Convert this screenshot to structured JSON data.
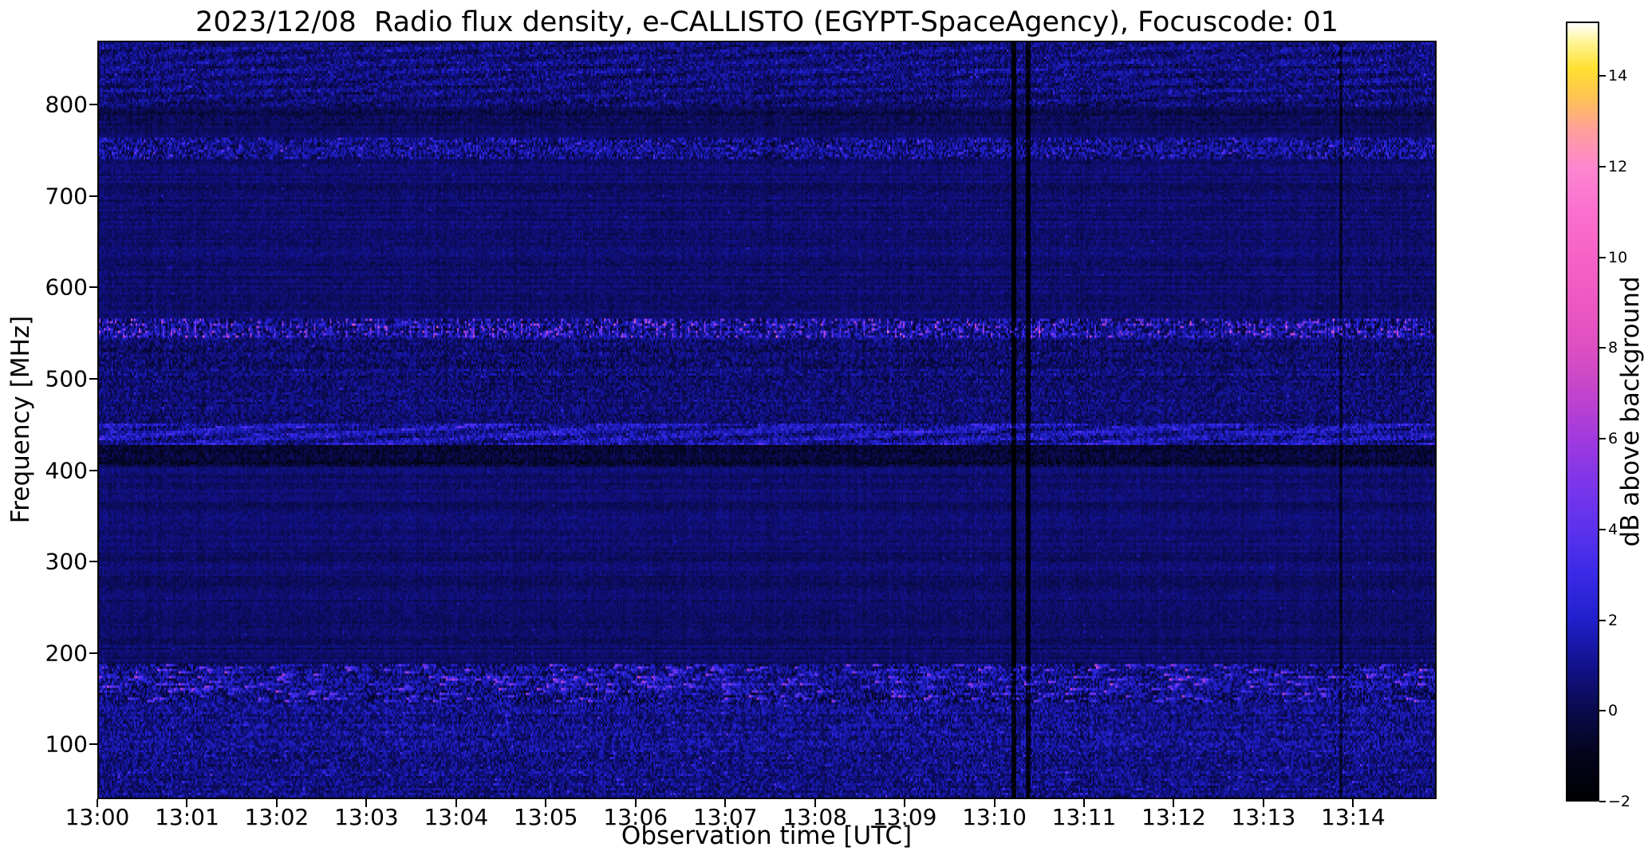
{
  "chart_data": {
    "type": "heatmap",
    "title": "2023/12/08  Radio flux density, e-CALLISTO (EGYPT-SpaceAgency), Focuscode: 01",
    "xlabel": "Observation time [UTC]",
    "ylabel": "Frequency [MHz]",
    "colorbar_label": "dB above background",
    "observation": {
      "date": "2023/12/08",
      "instrument": "e-CALLISTO",
      "station": "EGYPT-SpaceAgency",
      "focuscode": "01",
      "quantity": "Radio flux density"
    },
    "x_tick_labels": [
      "13:00",
      "13:01",
      "13:02",
      "13:03",
      "13:04",
      "13:05",
      "13:06",
      "13:07",
      "13:08",
      "13:09",
      "13:10",
      "13:11",
      "13:12",
      "13:13",
      "13:14"
    ],
    "x_tick_minutes": [
      0,
      1,
      2,
      3,
      4,
      5,
      6,
      7,
      8,
      9,
      10,
      11,
      12,
      13,
      14
    ],
    "x_range_minutes": [
      0,
      14.93
    ],
    "y_ticks": [
      100,
      200,
      300,
      400,
      500,
      600,
      700,
      800
    ],
    "y_range_mhz": [
      40,
      870
    ],
    "colorbar_ticks": [
      -2,
      0,
      2,
      4,
      6,
      8,
      10,
      12,
      14
    ],
    "colorbar_tick_labels": [
      "−2",
      "0",
      "2",
      "4",
      "6",
      "8",
      "10",
      "12",
      "14"
    ],
    "colorbar_range_db": [
      -2,
      15.2
    ],
    "grid": false,
    "legend": "none",
    "colormap_stops": [
      {
        "v": -2.0,
        "c": "#000003"
      },
      {
        "v": -1.0,
        "c": "#04041c"
      },
      {
        "v": 0.0,
        "c": "#0a0a4e"
      },
      {
        "v": 1.0,
        "c": "#12128e"
      },
      {
        "v": 2.0,
        "c": "#2020cc"
      },
      {
        "v": 3.0,
        "c": "#3a2ae6"
      },
      {
        "v": 4.0,
        "c": "#5c32ee"
      },
      {
        "v": 5.0,
        "c": "#7c36ea"
      },
      {
        "v": 6.0,
        "c": "#a13ade"
      },
      {
        "v": 7.0,
        "c": "#c244cc"
      },
      {
        "v": 8.0,
        "c": "#dd4fc0"
      },
      {
        "v": 9.0,
        "c": "#ec58c2"
      },
      {
        "v": 10.0,
        "c": "#f562c6"
      },
      {
        "v": 11.0,
        "c": "#fa70ce"
      },
      {
        "v": 12.0,
        "c": "#fd86d0"
      },
      {
        "v": 12.8,
        "c": "#ff9e9e"
      },
      {
        "v": 13.5,
        "c": "#ffc058"
      },
      {
        "v": 14.2,
        "c": "#ffe030"
      },
      {
        "v": 14.8,
        "c": "#fff599"
      },
      {
        "v": 15.2,
        "c": "#ffffff"
      }
    ],
    "background": {
      "base_db": 0.45,
      "noise_db": 0.35
    },
    "texture": {
      "row_jitter_db": 0.3,
      "col_jitter_db": 0.15,
      "seed": 42
    },
    "bands": [
      {
        "name": "uhf-texture-band",
        "f_mhz": [
          800,
          871
        ],
        "base_db": 0.7,
        "noise_db": 1.0,
        "spike_prob": 0.02,
        "spike_db": 2.0,
        "wave_amp_db": 0.35
      },
      {
        "name": "dark-gap-790",
        "f_mhz": [
          778,
          800
        ],
        "base_db": 0.1,
        "noise_db": 0.6
      },
      {
        "name": "speckle-band-755",
        "f_mhz": [
          742,
          766
        ],
        "base_db": 0.9,
        "noise_db": 1.5,
        "spike_prob": 0.05,
        "spike_db": 3.0
      },
      {
        "name": "quiet-565-742",
        "f_mhz": [
          565,
          742
        ],
        "base_db": 0.45,
        "noise_db": 0.45,
        "spike_prob": 0.002,
        "spike_db": 1.5
      },
      {
        "name": "rfi-band-555",
        "f_mhz": [
          546,
          565
        ],
        "base_db": 0.8,
        "noise_db": 1.6,
        "spike_prob": 0.06,
        "spike_db": 6.5,
        "persist": 0.4,
        "periodic_spike_period": 5,
        "periodic_spike_db": 4.5
      },
      {
        "name": "mottled-500-546",
        "f_mhz": [
          500,
          546
        ],
        "base_db": 0.55,
        "noise_db": 1.0,
        "spike_prob": 0.008,
        "spike_db": 2.0
      },
      {
        "name": "mottled-452-500",
        "f_mhz": [
          452,
          500
        ],
        "base_db": 0.6,
        "noise_db": 0.9,
        "spike_prob": 0.006,
        "spike_db": 2.0
      },
      {
        "name": "bright-blue-band-440",
        "f_mhz": [
          428,
          452
        ],
        "base_db": 1.4,
        "noise_db": 1.2,
        "spike_prob": 0.02,
        "spike_db": 2.2,
        "persist": 0.8,
        "wave_amp_db": 0.7
      },
      {
        "name": "dark-band-415",
        "f_mhz": [
          404,
          428
        ],
        "base_db": -0.5,
        "noise_db": 0.7
      },
      {
        "name": "quiet-mid-186-404",
        "f_mhz": [
          186,
          404
        ],
        "base_db": 0.45,
        "noise_db": 0.4,
        "spike_prob": 0.0015,
        "spike_db": 1.5
      },
      {
        "name": "rfi-band-165",
        "f_mhz": [
          146,
          186
        ],
        "base_db": 0.8,
        "noise_db": 1.6,
        "spike_prob": 0.035,
        "spike_db": 5.5,
        "persist": 0.78
      },
      {
        "name": "noisy-88-146",
        "f_mhz": [
          88,
          146
        ],
        "base_db": 0.9,
        "noise_db": 1.2,
        "spike_prob": 0.015,
        "spike_db": 2.2,
        "persist": 0.5
      },
      {
        "name": "noisy-low-40-88",
        "f_mhz": [
          40,
          88
        ],
        "base_db": 0.7,
        "noise_db": 1.1,
        "spike_prob": 0.015,
        "spike_db": 2.8,
        "persist": 0.5
      }
    ],
    "vertical_lines": [
      {
        "t_min": 10.22,
        "width_min": 0.035,
        "delta_db": -2.6
      },
      {
        "t_min": 10.38,
        "width_min": 0.03,
        "delta_db": -2.3
      },
      {
        "t_min": 13.88,
        "width_min": 0.02,
        "delta_db": -1.2
      }
    ]
  }
}
